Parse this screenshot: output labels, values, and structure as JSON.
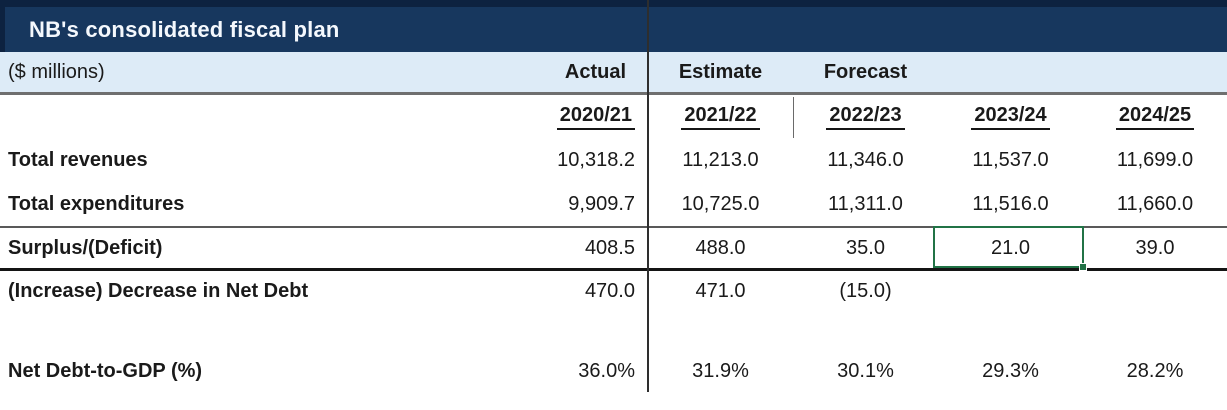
{
  "table": {
    "title": "NB's consolidated fiscal plan",
    "units_label": "($ millions)",
    "column_groups": {
      "actual_label": "Actual",
      "estimate_label": "Estimate",
      "forecast_label": "Forecast"
    },
    "years": [
      "2020/21",
      "2021/22",
      "2022/23",
      "2023/24",
      "2024/25"
    ],
    "rows": [
      {
        "label": "Total revenues",
        "values": [
          "10,318.2",
          "11,213.0",
          "11,346.0",
          "11,537.0",
          "11,699.0"
        ]
      },
      {
        "label": "Total expenditures",
        "values": [
          "9,909.7",
          "10,725.0",
          "11,311.0",
          "11,516.0",
          "11,660.0"
        ]
      },
      {
        "label": "Surplus/(Deficit)",
        "values": [
          "408.5",
          "488.0",
          "35.0",
          "21.0",
          "39.0"
        ]
      },
      {
        "label": "(Increase) Decrease in Net Debt",
        "values": [
          "470.0",
          "471.0",
          "(15.0)",
          "",
          ""
        ]
      },
      {
        "label": "Net Debt-to-GDP (%)",
        "values": [
          "36.0%",
          "31.9%",
          "30.1%",
          "29.3%",
          "28.2%"
        ]
      }
    ],
    "selection": {
      "row_label": "Surplus/(Deficit)",
      "year": "2023/24",
      "value": "21.0",
      "border_color": "#217346"
    }
  },
  "colors": {
    "title_bar": "#17375E",
    "title_bar_edge": "#0D2240",
    "header_row": "#DDEBF7",
    "selection_green": "#217346",
    "rule_gray": "#595959",
    "rule_black": "#141414"
  }
}
